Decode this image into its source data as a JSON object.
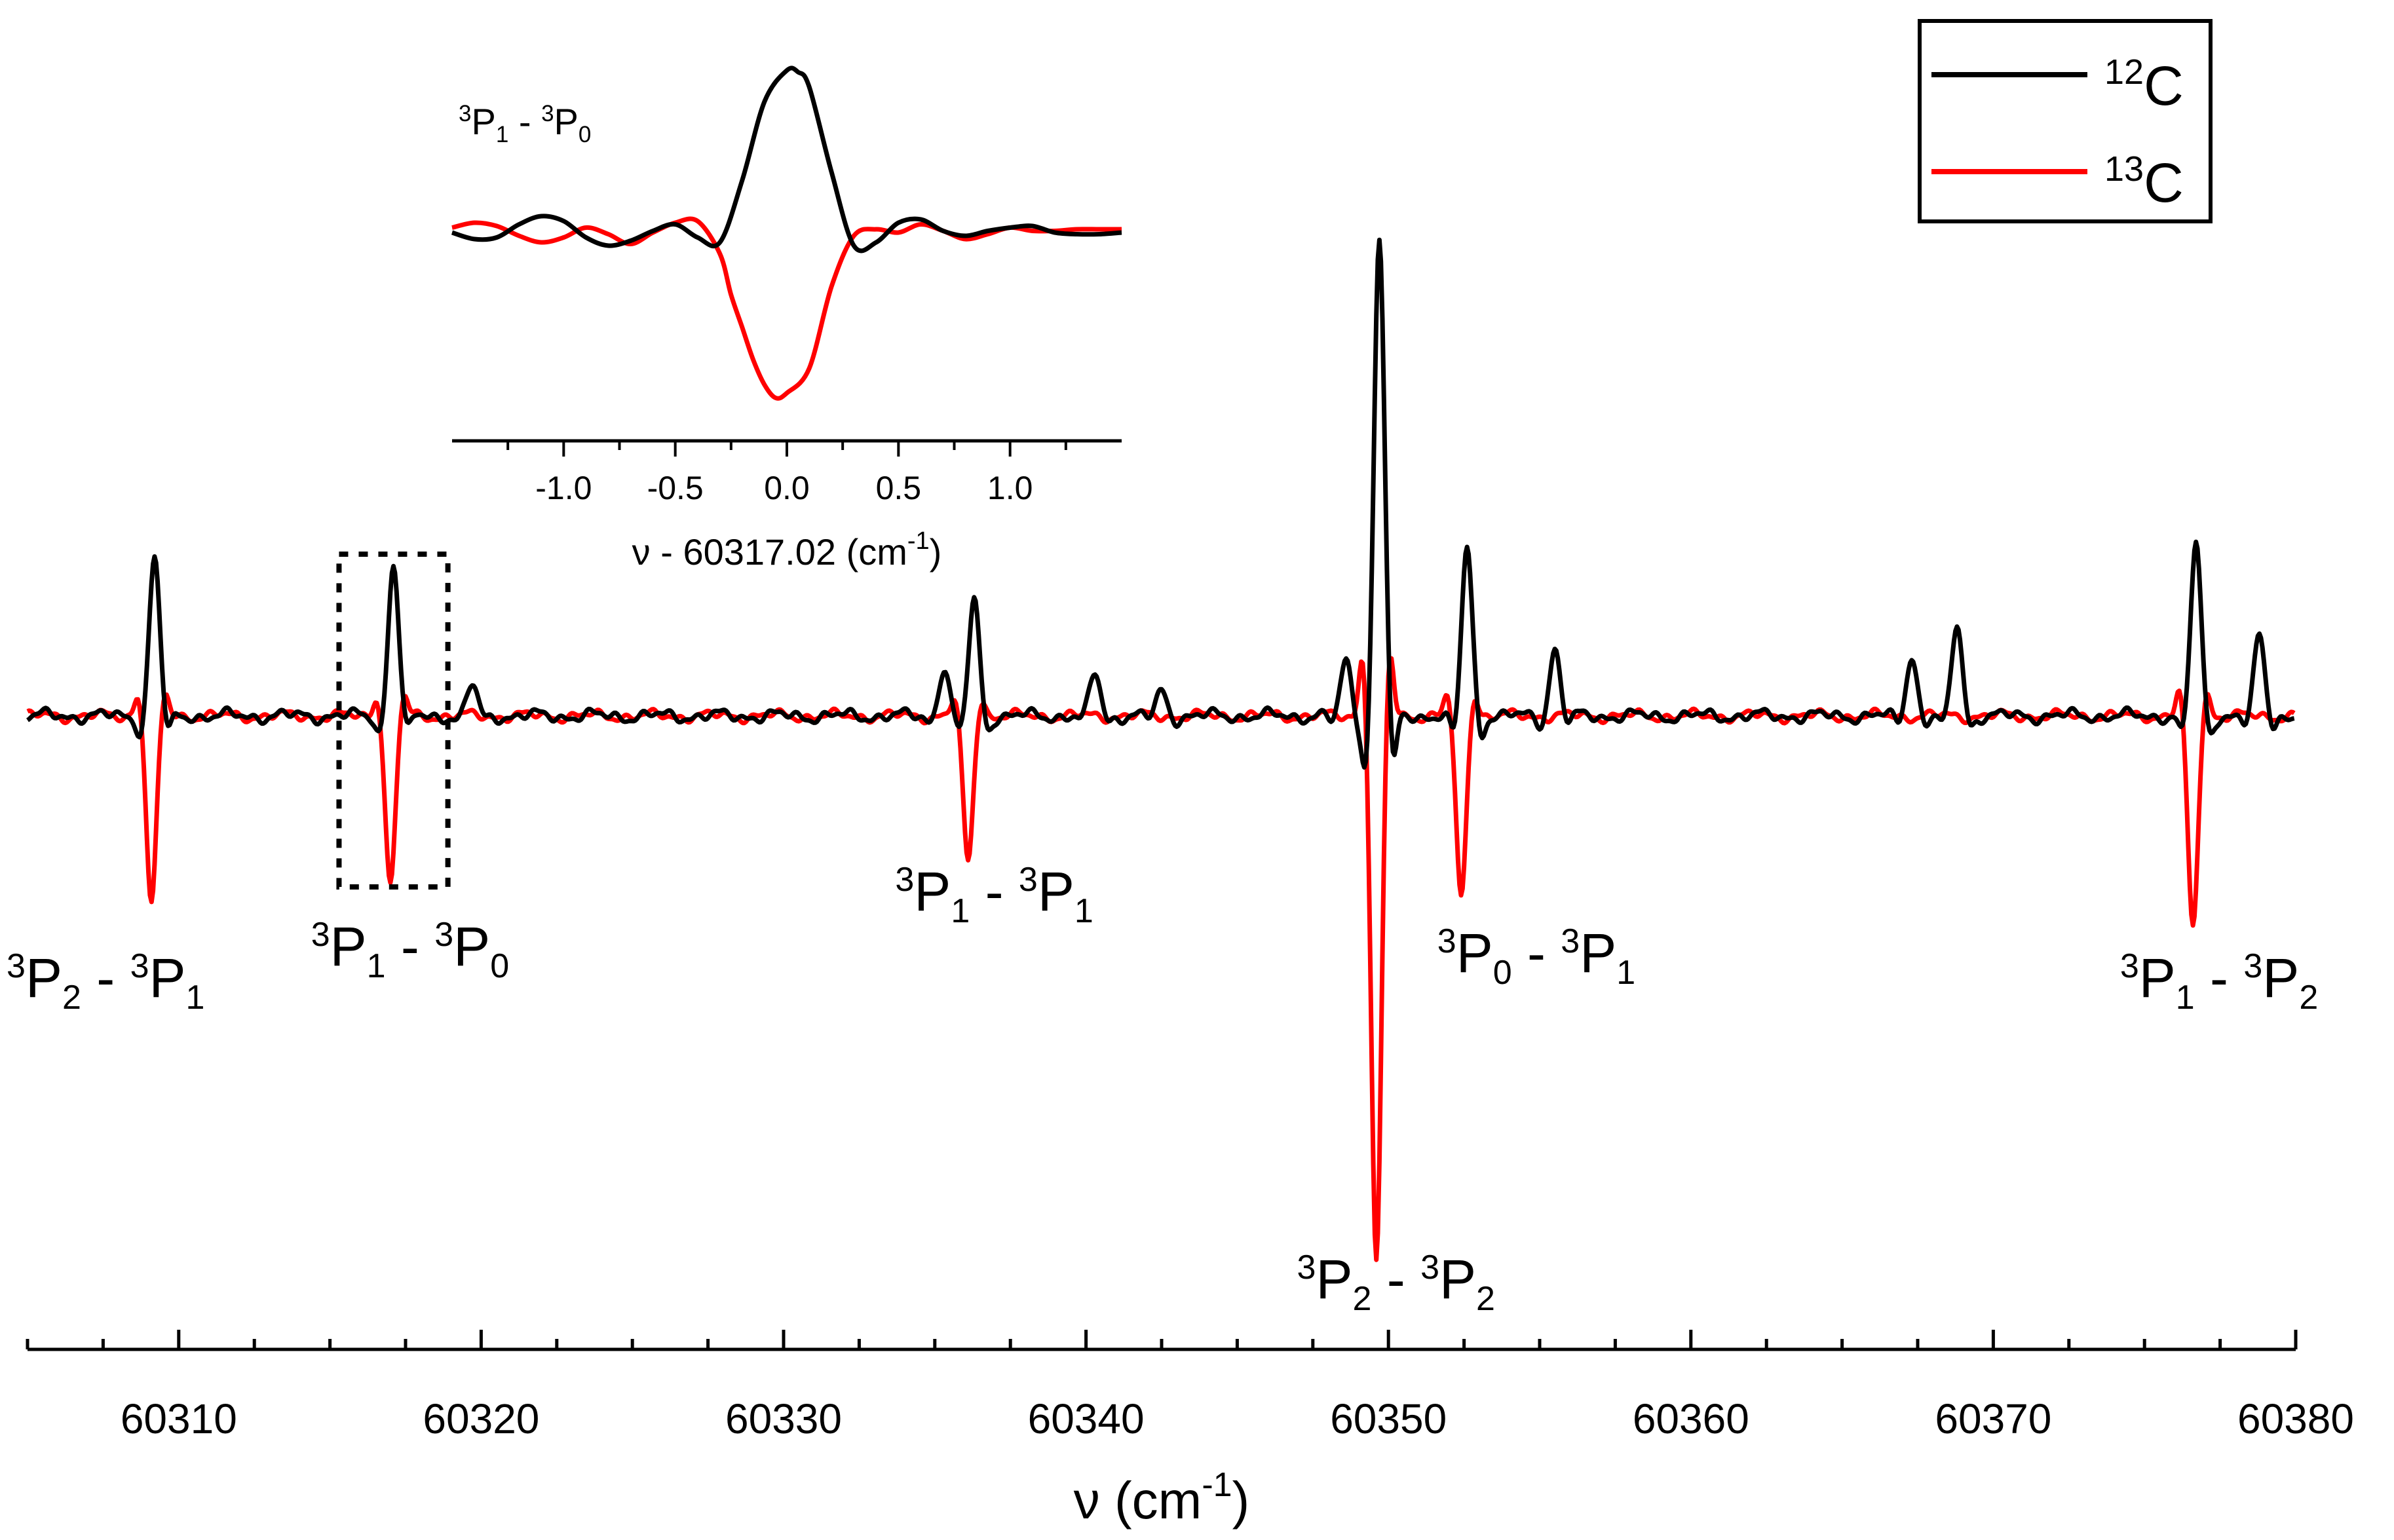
{
  "chart_data": [
    {
      "type": "line",
      "title": "",
      "xlabel": "ν (cm⁻¹)",
      "ylabel": "",
      "xlim": [
        60305,
        60380
      ],
      "x_ticks": [
        60310,
        60320,
        60330,
        60340,
        60350,
        60360,
        60370,
        60380
      ],
      "x_tick_labels": [
        "60310",
        "60320",
        "60330",
        "60340",
        "60350",
        "60360",
        "60370",
        "60380"
      ],
      "y_axis_visible": false,
      "legend": {
        "position": "top-right",
        "entries": [
          {
            "mass": "12",
            "element": "C",
            "color": "#000000"
          },
          {
            "mass": "13",
            "element": "C",
            "color": "#ff0000"
          }
        ]
      },
      "series": [
        {
          "name": "12C",
          "color": "#000000",
          "direction": "up",
          "peaks": [
            {
              "x": 60309.2,
              "height": 0.26
            },
            {
              "x": 60317.1,
              "height": 0.25
            },
            {
              "x": 60319.7,
              "height": 0.05
            },
            {
              "x": 60335.3,
              "height": 0.08
            },
            {
              "x": 60336.3,
              "height": 0.19
            },
            {
              "x": 60340.3,
              "height": 0.07
            },
            {
              "x": 60342.5,
              "height": 0.04
            },
            {
              "x": 60348.6,
              "height": 0.09
            },
            {
              "x": 60349.7,
              "height": 0.78
            },
            {
              "x": 60352.6,
              "height": 0.28
            },
            {
              "x": 60355.5,
              "height": 0.11
            },
            {
              "x": 60367.3,
              "height": 0.1
            },
            {
              "x": 60368.8,
              "height": 0.15
            },
            {
              "x": 60376.7,
              "height": 0.28
            },
            {
              "x": 60378.8,
              "height": 0.13
            }
          ]
        },
        {
          "name": "13C",
          "color": "#ff0000",
          "direction": "down",
          "peaks": [
            {
              "x": 60309.1,
              "height": 0.31
            },
            {
              "x": 60317.0,
              "height": 0.28
            },
            {
              "x": 60336.1,
              "height": 0.24
            },
            {
              "x": 60349.6,
              "height": 0.9
            },
            {
              "x": 60352.4,
              "height": 0.3
            },
            {
              "x": 60376.6,
              "height": 0.35
            }
          ]
        }
      ],
      "annotations": [
        {
          "x": 60309.1,
          "upper": "2",
          "lower": "1",
          "text": "³P₂ - ³P₁"
        },
        {
          "x": 60317.0,
          "upper": "1",
          "lower": "0",
          "text": "³P₁ - ³P₀"
        },
        {
          "x": 60336.1,
          "upper": "1",
          "lower": "1",
          "text": "³P₁ - ³P₁"
        },
        {
          "x": 60349.6,
          "upper": "2",
          "lower": "2",
          "text": "³P₂ - ³P₂"
        },
        {
          "x": 60352.4,
          "upper": "0",
          "lower": "1",
          "text": "³P₀ - ³P₁"
        },
        {
          "x": 60376.6,
          "upper": "1",
          "lower": "2",
          "text": "³P₁ - ³P₂"
        }
      ],
      "highlight_box": {
        "x_range": [
          60315.3,
          60318.9
        ],
        "style": "dotted"
      }
    },
    {
      "type": "line",
      "title": "³P₁ - ³P₀",
      "title_upper": "1",
      "title_lower": "0",
      "xlabel": "ν - 60317.02 (cm⁻¹)",
      "xlabel_offset": "60317.02",
      "xlim": [
        -1.5,
        1.5
      ],
      "x_ticks": [
        -1.0,
        -0.5,
        0.0,
        0.5,
        1.0
      ],
      "x_tick_labels": [
        "-1.0",
        "-0.5",
        "0.0",
        "0.5",
        "1.0"
      ],
      "ylim": [
        -1.1,
        1.0
      ],
      "series": [
        {
          "name": "12C",
          "color": "#000000",
          "x": [
            -1.5,
            -1.4,
            -1.3,
            -1.2,
            -1.1,
            -1.0,
            -0.9,
            -0.8,
            -0.7,
            -0.6,
            -0.5,
            -0.4,
            -0.3,
            -0.2,
            -0.1,
            0.0,
            0.05,
            0.1,
            0.2,
            0.3,
            0.4,
            0.5,
            0.6,
            0.7,
            0.8,
            0.9,
            1.0,
            1.1,
            1.2,
            1.3,
            1.4,
            1.5
          ],
          "y": [
            -0.02,
            -0.06,
            -0.05,
            0.03,
            0.08,
            0.05,
            -0.05,
            -0.1,
            -0.07,
            -0.01,
            0.03,
            -0.05,
            -0.08,
            0.3,
            0.78,
            0.97,
            0.96,
            0.87,
            0.35,
            -0.1,
            -0.08,
            0.04,
            0.06,
            -0.01,
            -0.04,
            -0.01,
            0.01,
            0.02,
            -0.02,
            -0.03,
            -0.03,
            -0.02
          ]
        },
        {
          "name": "13C",
          "color": "#ff0000",
          "x": [
            -1.5,
            -1.4,
            -1.3,
            -1.2,
            -1.1,
            -1.0,
            -0.9,
            -0.8,
            -0.7,
            -0.6,
            -0.5,
            -0.4,
            -0.3,
            -0.25,
            -0.2,
            -0.15,
            -0.1,
            -0.05,
            0.0,
            0.1,
            0.2,
            0.3,
            0.4,
            0.5,
            0.6,
            0.7,
            0.8,
            0.9,
            1.0,
            1.1,
            1.2,
            1.3,
            1.4,
            1.5
          ],
          "y": [
            0.01,
            0.04,
            0.02,
            -0.04,
            -0.08,
            -0.05,
            0.01,
            -0.03,
            -0.09,
            -0.02,
            0.04,
            0.05,
            -0.15,
            -0.4,
            -0.6,
            -0.8,
            -0.95,
            -1.03,
            -1.0,
            -0.85,
            -0.35,
            -0.04,
            0.0,
            -0.02,
            0.03,
            -0.01,
            -0.06,
            -0.03,
            0.01,
            -0.01,
            -0.01,
            0.0,
            0.0,
            0.0
          ]
        }
      ]
    }
  ]
}
